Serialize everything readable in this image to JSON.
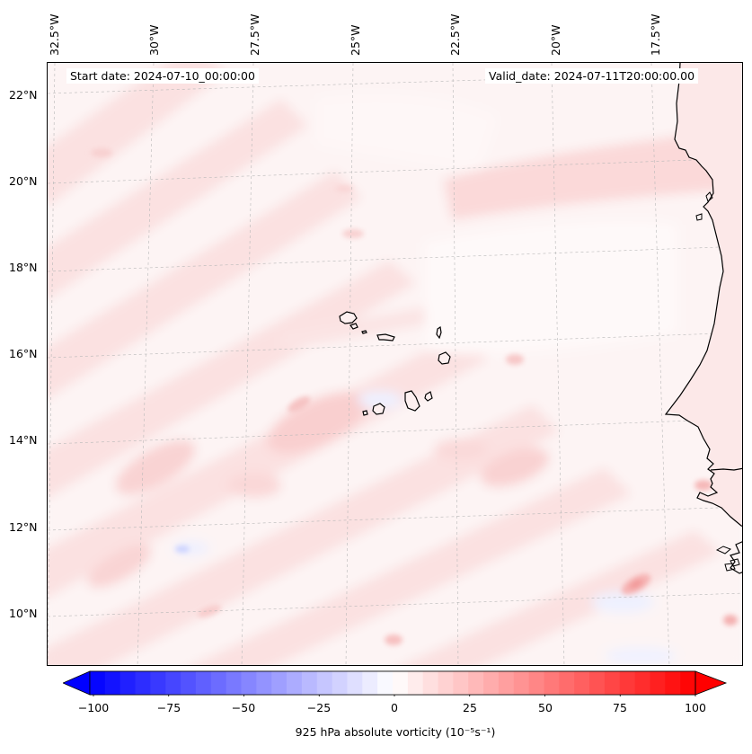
{
  "map": {
    "info": {
      "start_date": "Start date: 2024-07-10_00:00:00",
      "valid_date": "Valid_date: 2024-07-11T20:00:00.00"
    },
    "lon_labels": [
      "32.5°W",
      "30°W",
      "27.5°W",
      "25°W",
      "22.5°W",
      "20°W",
      "17.5°W"
    ],
    "lat_labels": [
      "22°N",
      "20°N",
      "18°N",
      "16°N",
      "14°N",
      "12°N",
      "10°N"
    ],
    "field": "925 hPa absolute vorticity",
    "colors": {
      "land_outline": "#000000",
      "ocean_base": "#fdf6f6",
      "positive": "#ff0000",
      "negative": "#0000ff",
      "gridline": "#b0b0b0"
    }
  },
  "colorbar": {
    "title": "925 hPa absolute vorticity (10⁻⁵s⁻¹)",
    "ticks": [
      "−100",
      "−75",
      "−50",
      "−25",
      "0",
      "25",
      "50",
      "75",
      "100"
    ],
    "min": -100,
    "max": 100,
    "extend": "both"
  }
}
